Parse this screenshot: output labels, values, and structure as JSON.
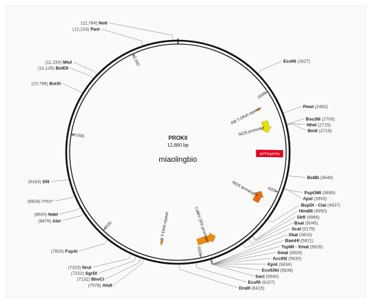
{
  "plasmid": {
    "name": "PROKII",
    "size_label": "12,880 bp",
    "length_bp": 12880,
    "watermark": "miaolingbio"
  },
  "ticks": [
    {
      "bp": 2000,
      "label": "2000"
    },
    {
      "bp": 4000,
      "label": "4000"
    },
    {
      "bp": 6000,
      "label": "6000"
    },
    {
      "bp": 8000,
      "label": "8000"
    },
    {
      "bp": 10000,
      "label": "10,000"
    },
    {
      "bp": 12000,
      "label": "12,000"
    }
  ],
  "sites": [
    {
      "name": "NotI",
      "pos": "(12,784)",
      "bp": 12784,
      "side": "left"
    },
    {
      "name": "PasI",
      "pos": "(12,233)",
      "bp": 12233,
      "side": "left"
    },
    {
      "name": "MluI",
      "pos": "(11,230)",
      "bp": 11230,
      "side": "left"
    },
    {
      "name": "BstEII",
      "pos": "(11,126)",
      "bp": 11126,
      "side": "left"
    },
    {
      "name": "BstXI",
      "pos": "(10,796)",
      "bp": 10796,
      "side": "left"
    },
    {
      "name": "SfiI",
      "pos": "(9163)",
      "bp": 9163,
      "side": "left"
    },
    {
      "name": "PflMI*",
      "pos": "(8834)",
      "bp": 8834,
      "side": "left",
      "light": true
    },
    {
      "name": "NdeI",
      "pos": "(8600)",
      "bp": 8600,
      "side": "left"
    },
    {
      "name": "AleI",
      "pos": "(8476)",
      "bp": 8476,
      "side": "left"
    },
    {
      "name": "FspAI",
      "pos": "(7820)",
      "bp": 7820,
      "side": "left"
    },
    {
      "name": "NruI",
      "pos": "(7323)",
      "bp": 7323,
      "side": "left"
    },
    {
      "name": "SgrDI",
      "pos": "(7222)",
      "bp": 7222,
      "side": "left"
    },
    {
      "name": "BbvCI",
      "pos": "(7132)",
      "bp": 7132,
      "side": "left"
    },
    {
      "name": "AhdI",
      "pos": "(7078)",
      "bp": 7078,
      "side": "left"
    },
    {
      "name": "DraIII",
      "pos": "(6415)",
      "bp": 6415,
      "side": "right"
    },
    {
      "name": "EcoRI",
      "pos": "(6107)",
      "bp": 6107,
      "side": "right"
    },
    {
      "name": "SacI",
      "pos": "(5840)",
      "bp": 5840,
      "side": "right"
    },
    {
      "name": "Eco53kI",
      "pos": "(5838)",
      "bp": 5838,
      "side": "right"
    },
    {
      "name": "KpnI",
      "pos": "(5834)",
      "bp": 5834,
      "side": "right"
    },
    {
      "name": "Acc65I",
      "pos": "(5830)",
      "bp": 5830,
      "side": "right"
    },
    {
      "name": "SmaI",
      "pos": "(5828)",
      "bp": 5828,
      "side": "right"
    },
    {
      "name": "TspMI - XmaI",
      "pos": "(5826)",
      "bp": 5826,
      "side": "right"
    },
    {
      "name": "BamHI",
      "pos": "(5821)",
      "bp": 5821,
      "side": "right"
    },
    {
      "name": "XbaI",
      "pos": "(5815)",
      "bp": 5815,
      "side": "right"
    },
    {
      "name": "ScaI",
      "pos": "(5179)",
      "bp": 5179,
      "side": "right"
    },
    {
      "name": "BsaI",
      "pos": "(5045)",
      "bp": 5045,
      "side": "right"
    },
    {
      "name": "SbfI",
      "pos": "(4966)",
      "bp": 4966,
      "side": "right"
    },
    {
      "name": "HindIII",
      "pos": "(4950)",
      "bp": 4950,
      "side": "right"
    },
    {
      "name": "BspDI - ClaI",
      "pos": "(4537)",
      "bp": 4537,
      "side": "right"
    },
    {
      "name": "ApaI",
      "pos": "(3903)",
      "bp": 3903,
      "side": "right"
    },
    {
      "name": "PspOMI",
      "pos": "(3899)",
      "bp": 3899,
      "side": "right"
    },
    {
      "name": "BstBI",
      "pos": "(3648)",
      "bp": 3648,
      "side": "right"
    },
    {
      "name": "BmtI",
      "pos": "(2719)",
      "bp": 2719,
      "side": "right"
    },
    {
      "name": "NheI",
      "pos": "(2715)",
      "bp": 2715,
      "side": "right"
    },
    {
      "name": "Bsu36I",
      "pos": "(2700)",
      "bp": 2700,
      "side": "right"
    },
    {
      "name": "PmeI",
      "pos": "(2492)",
      "bp": 2492,
      "side": "right"
    },
    {
      "name": "EcoNI",
      "pos": "(1627)",
      "bp": 1627,
      "side": "right"
    }
  ],
  "features": [
    {
      "name": "RB T-DNA repeat",
      "kind": "bar",
      "start": 2190,
      "end": 2240,
      "color": "#e8902a"
    },
    {
      "name": "NOS promoter",
      "kind": "arrow",
      "start": 2520,
      "end": 2780,
      "color": "#e8e000"
    },
    {
      "name": "NeoR/KanR",
      "kind": "box",
      "start": 2950,
      "end": 3550,
      "color": "#e8001c"
    },
    {
      "name": "NOS terminator",
      "kind": "arrow-rev",
      "start": 4120,
      "end": 4380,
      "color": "#e86a10"
    },
    {
      "name": "CaMV 35S promoter",
      "kind": "arrow-rev",
      "start": 5580,
      "end": 6000,
      "color": "#f08a10"
    },
    {
      "name": "LB T-DNA repeat",
      "kind": "bar",
      "start": 6780,
      "end": 6830,
      "color": "#e8902a"
    }
  ],
  "colors": {
    "backbone": "#111111",
    "site_text": "#222222",
    "position_text": "#444444",
    "light_text": "#666666"
  }
}
